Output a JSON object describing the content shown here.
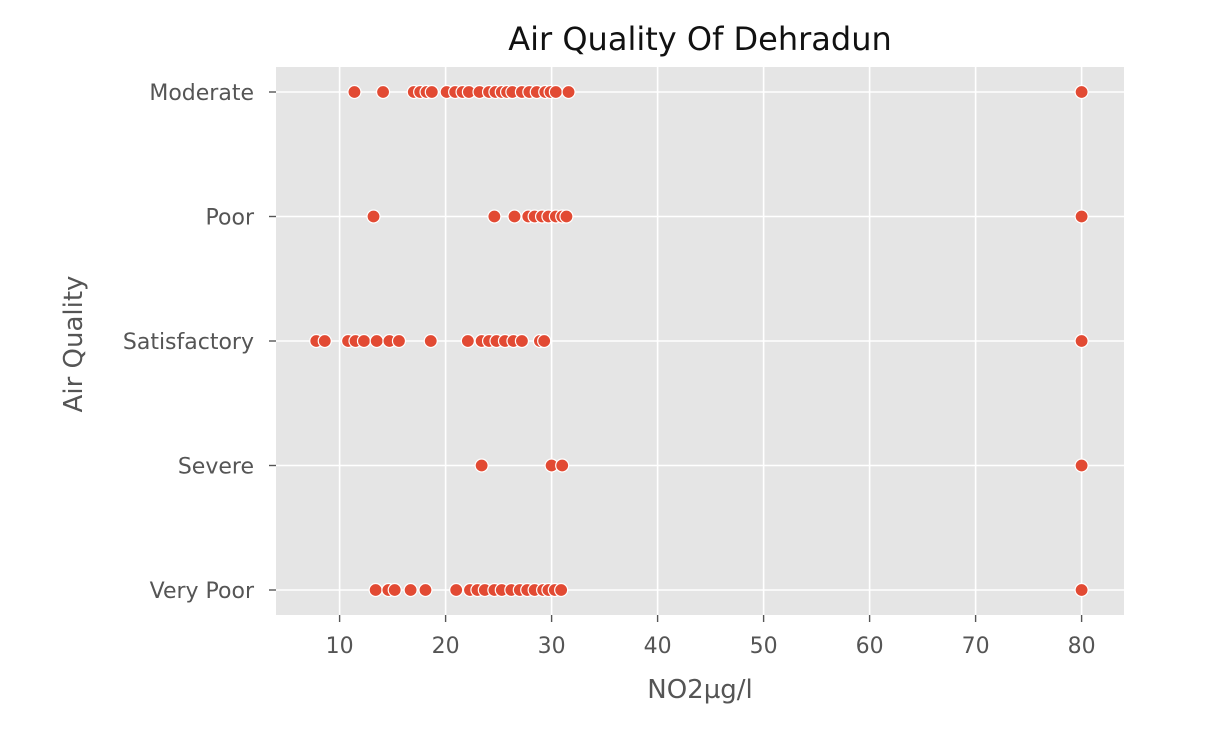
{
  "chart_data": {
    "type": "scatter",
    "title": "Air Quality Of Dehradun",
    "xlabel": "NO2µg/l",
    "ylabel": "Air Quality",
    "xlim": [
      4,
      84
    ],
    "xticks": [
      10,
      20,
      30,
      40,
      50,
      60,
      70,
      80
    ],
    "categories": [
      "Moderate",
      "Poor",
      "Satisfactory",
      "Severe",
      "Very Poor"
    ],
    "grid": true,
    "legend": "none",
    "colors": {
      "point": "#E24A33",
      "background": "#E5E5E5",
      "grid": "#FFFFFF"
    },
    "points": [
      {
        "y": "Moderate",
        "x": [
          11.4,
          14.1,
          17.0,
          17.6,
          18.2,
          18.7,
          20.1,
          20.9,
          21.6,
          22.2,
          23.2,
          24.1,
          24.7,
          25.3,
          25.8,
          26.3,
          27.2,
          27.9,
          28.6,
          29.4,
          29.9,
          30.4,
          31.6,
          80.0
        ]
      },
      {
        "y": "Poor",
        "x": [
          13.2,
          24.6,
          26.5,
          27.8,
          28.4,
          29.1,
          29.7,
          30.4,
          31.0,
          31.4,
          80.0
        ]
      },
      {
        "y": "Satisfactory",
        "x": [
          7.8,
          8.6,
          10.8,
          11.5,
          12.3,
          13.5,
          14.7,
          15.6,
          18.6,
          22.1,
          23.4,
          24.1,
          24.8,
          25.6,
          26.4,
          27.2,
          28.9,
          29.3,
          80.0
        ]
      },
      {
        "y": "Severe",
        "x": [
          23.4,
          30.0,
          31.0,
          80.0
        ]
      },
      {
        "y": "Very Poor",
        "x": [
          13.4,
          14.6,
          15.2,
          16.7,
          18.1,
          21.0,
          22.3,
          23.0,
          23.7,
          24.6,
          25.3,
          26.2,
          27.0,
          27.7,
          28.4,
          29.2,
          29.7,
          30.3,
          30.9,
          80.0
        ]
      }
    ]
  }
}
